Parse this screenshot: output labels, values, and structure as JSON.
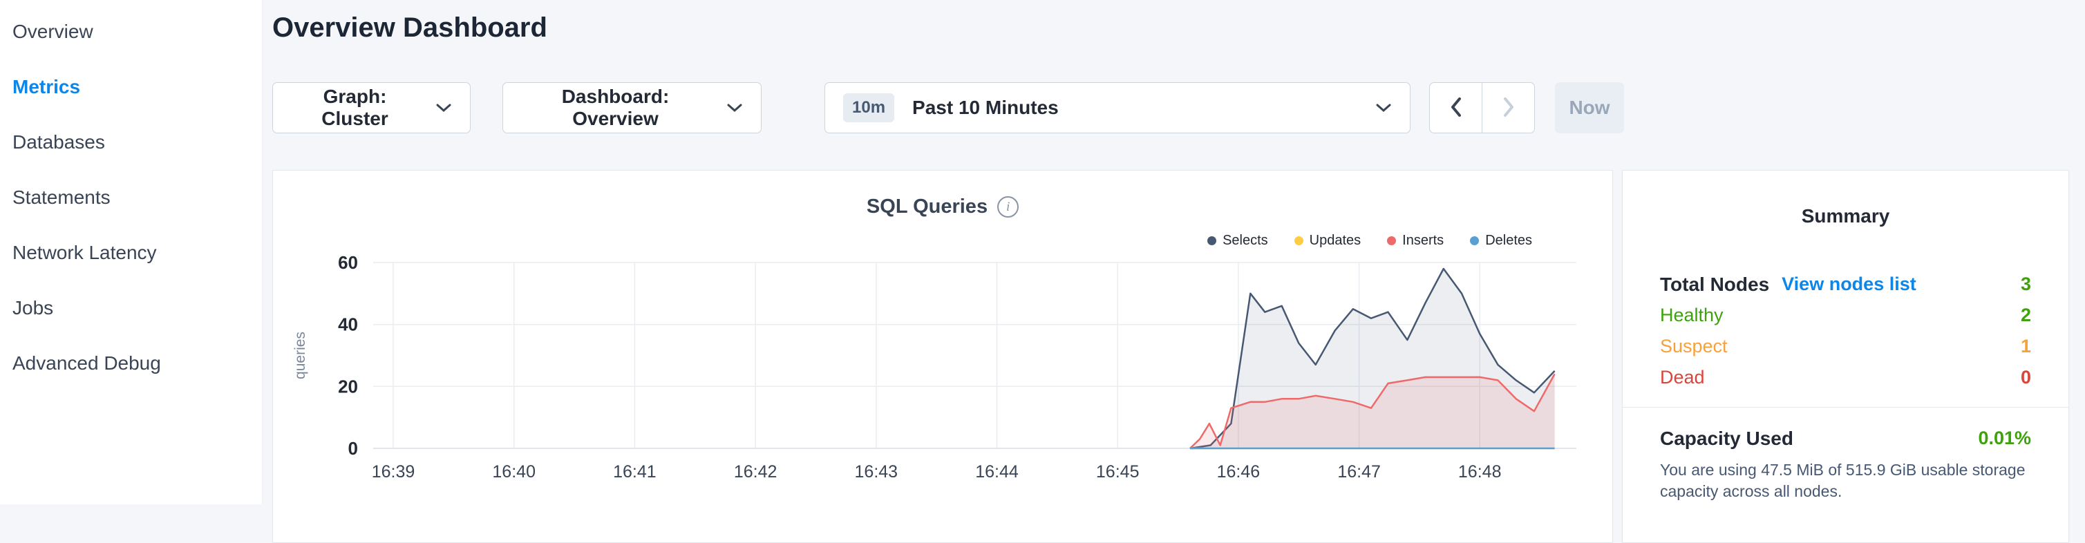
{
  "app": {
    "background": "#f4f6f9",
    "accent_blue": "#0d86ea"
  },
  "sidebar": {
    "items": [
      {
        "label": "Overview",
        "active": false
      },
      {
        "label": "Metrics",
        "active": true
      },
      {
        "label": "Databases",
        "active": false
      },
      {
        "label": "Statements",
        "active": false
      },
      {
        "label": "Network Latency",
        "active": false
      },
      {
        "label": "Jobs",
        "active": false
      },
      {
        "label": "Advanced Debug",
        "active": false
      }
    ]
  },
  "header": {
    "title": "Overview Dashboard"
  },
  "toolbar": {
    "graph_dropdown": "Graph: Cluster",
    "dashboard_dropdown": "Dashboard: Overview",
    "time_badge": "10m",
    "time_range": "Past 10 Minutes",
    "now_button": "Now"
  },
  "icons": {
    "info": "i"
  },
  "chart": {
    "title": "SQL Queries"
  },
  "chart_data": {
    "type": "area",
    "title": "SQL Queries",
    "ylabel": "queries",
    "ylim": [
      0,
      60
    ],
    "yticks": [
      0,
      20,
      40,
      60
    ],
    "xlim": [
      -0.166,
      9.8
    ],
    "xticks": [
      0,
      1,
      2,
      3,
      4,
      5,
      6,
      7,
      8,
      9
    ],
    "xtick_labels": [
      "16:39",
      "16:40",
      "16:41",
      "16:42",
      "16:43",
      "16:44",
      "16:45",
      "16:46",
      "16:47",
      "16:48"
    ],
    "grid": true,
    "legend_position": "top-right",
    "series": [
      {
        "name": "Selects",
        "color": "#475872",
        "fill": "rgba(71,88,114,0.10)",
        "x": [
          6.6,
          6.77,
          6.94,
          7.1,
          7.22,
          7.36,
          7.5,
          7.64,
          7.8,
          7.95,
          8.1,
          8.24,
          8.4,
          8.55,
          8.7,
          8.85,
          9.0,
          9.15,
          9.3,
          9.45,
          9.62
        ],
        "y": [
          0,
          1,
          8,
          50,
          44,
          46,
          34,
          27,
          38,
          45,
          42,
          44,
          35,
          47,
          58,
          50,
          37,
          27,
          22,
          18,
          25
        ]
      },
      {
        "name": "Updates",
        "color": "#ffcd43",
        "fill": "rgba(255,205,67,0.10)",
        "x": [
          6.6,
          9.62
        ],
        "y": [
          0,
          0
        ]
      },
      {
        "name": "Inserts",
        "color": "#ee6a6a",
        "fill": "rgba(238,106,106,0.14)",
        "x": [
          6.6,
          6.68,
          6.76,
          6.85,
          6.94,
          7.1,
          7.22,
          7.36,
          7.5,
          7.64,
          7.8,
          7.95,
          8.1,
          8.24,
          8.4,
          8.55,
          8.7,
          8.85,
          9.0,
          9.15,
          9.3,
          9.45,
          9.62
        ],
        "y": [
          0,
          3,
          8,
          1,
          13,
          15,
          15,
          16,
          16,
          17,
          16,
          15,
          13,
          21,
          22,
          23,
          23,
          23,
          23,
          22,
          16,
          12,
          24
        ]
      },
      {
        "name": "Deletes",
        "color": "#5a9fd4",
        "fill": "rgba(90,159,212,0.10)",
        "x": [
          6.6,
          9.62
        ],
        "y": [
          0,
          0
        ]
      }
    ]
  },
  "summary": {
    "title": "Summary",
    "total_nodes_label": "Total Nodes",
    "view_nodes_link": "View nodes list",
    "total_nodes_value": "3",
    "rows": [
      {
        "label": "Healthy",
        "value": "2",
        "color": "#3da20c"
      },
      {
        "label": "Suspect",
        "value": "1",
        "color": "#f7a13b"
      },
      {
        "label": "Dead",
        "value": "0",
        "color": "#d9453c"
      }
    ],
    "capacity_label": "Capacity Used",
    "capacity_value": "0.01%",
    "capacity_description": "You are using 47.5 MiB of 515.9 GiB usable storage capacity across all nodes."
  }
}
